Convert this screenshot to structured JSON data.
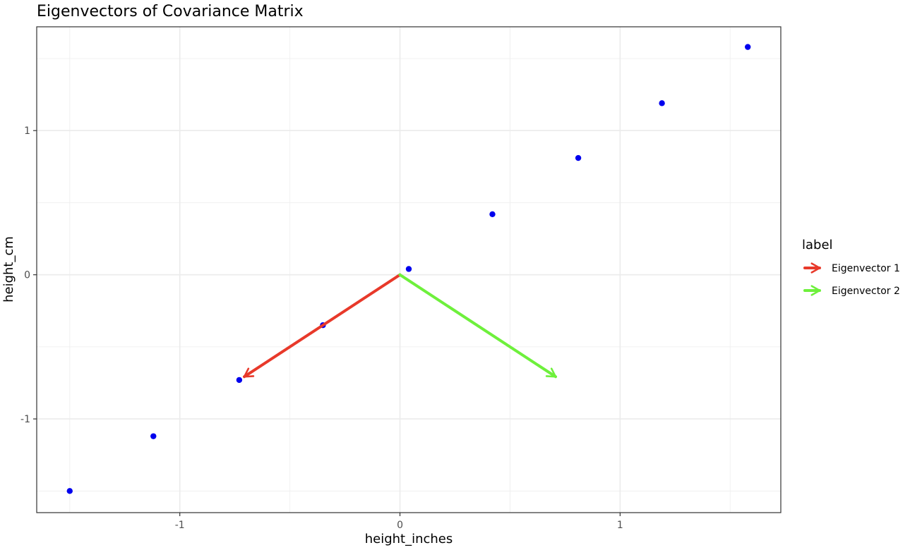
{
  "chart_data": {
    "type": "scatter",
    "title": "Eigenvectors of Covariance Matrix",
    "xlabel": "height_inches",
    "ylabel": "height_cm",
    "xlim": [
      -1.65,
      1.73
    ],
    "ylim": [
      -1.65,
      1.72
    ],
    "x_ticks": [
      -1,
      0,
      1
    ],
    "x_tick_labels": [
      "-1",
      "0",
      "1"
    ],
    "y_ticks": [
      -1,
      0,
      1
    ],
    "y_tick_labels": [
      "-1",
      "0",
      "1"
    ],
    "grid": true,
    "point_color": "#0000ee",
    "points": [
      {
        "x": -1.5,
        "y": -1.5
      },
      {
        "x": -1.12,
        "y": -1.12
      },
      {
        "x": -0.73,
        "y": -0.73
      },
      {
        "x": -0.35,
        "y": -0.35
      },
      {
        "x": 0.04,
        "y": 0.04
      },
      {
        "x": 0.42,
        "y": 0.42
      },
      {
        "x": 0.81,
        "y": 0.81
      },
      {
        "x": 1.19,
        "y": 1.19
      },
      {
        "x": 1.58,
        "y": 1.58
      }
    ],
    "series": [
      {
        "name": "Eigenvector 1",
        "color": "#e8392a",
        "x0": 0,
        "y0": 0,
        "x1": -0.7071,
        "y1": -0.7071
      },
      {
        "name": "Eigenvector 2",
        "color": "#6ef03c",
        "x0": 0,
        "y0": 0,
        "x1": 0.7071,
        "y1": -0.7071
      }
    ],
    "legend": {
      "title": "label",
      "placement": "right"
    }
  }
}
